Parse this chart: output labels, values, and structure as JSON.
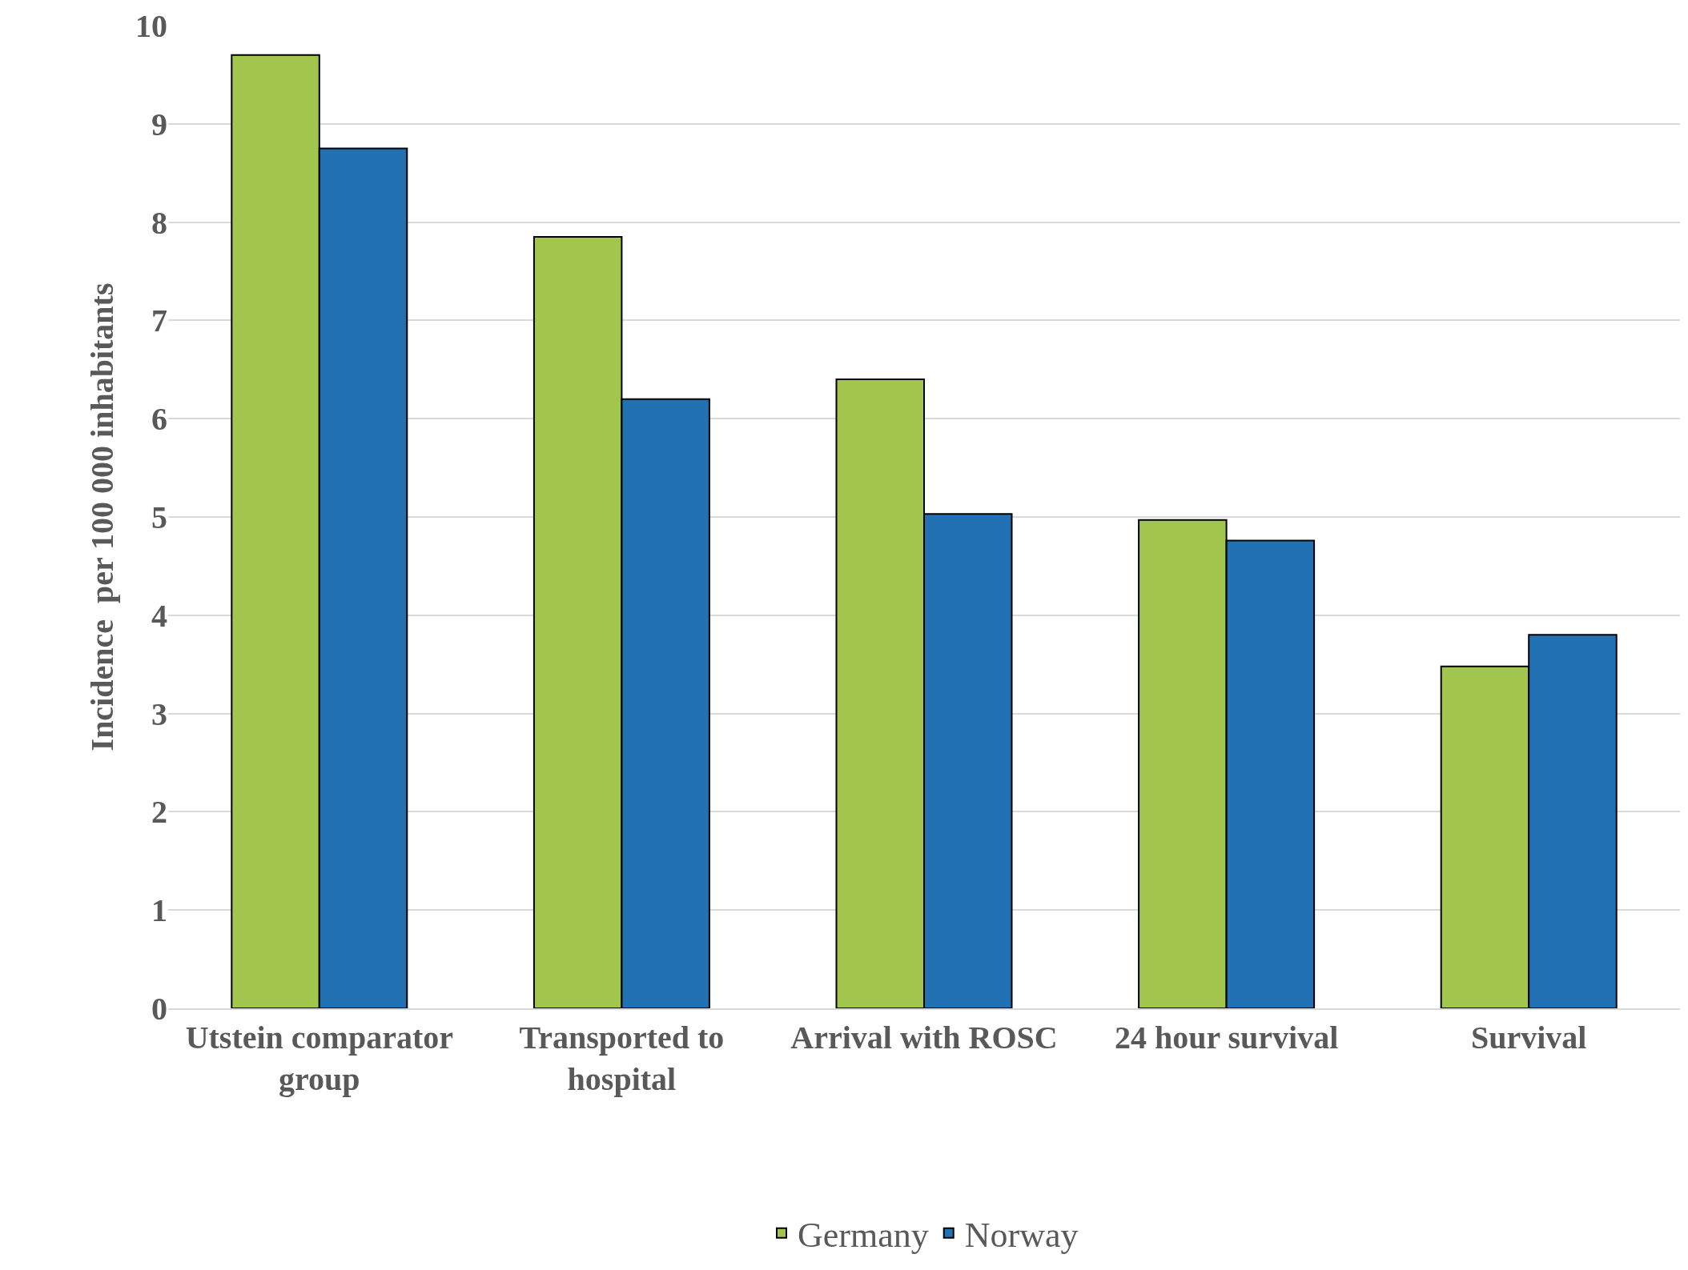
{
  "chart_data": {
    "type": "bar",
    "ylabel": "Incidence  per 100 000 inhabitants",
    "categories": [
      "Utstein comparator group",
      "Transported to hospital",
      "Arrival with ROSC",
      "24 hour survival",
      "Survival"
    ],
    "series": [
      {
        "name": "Germany",
        "color": "#a2c54e",
        "values": [
          9.7,
          7.85,
          6.4,
          4.97,
          3.48
        ]
      },
      {
        "name": "Norway",
        "color": "#2271b3",
        "values": [
          8.75,
          6.2,
          5.03,
          4.76,
          3.8
        ]
      }
    ],
    "ylim": [
      0,
      10
    ],
    "yticks": [
      0,
      1,
      2,
      3,
      4,
      5,
      6,
      7,
      8,
      9,
      10
    ],
    "grid": "y",
    "legend": "bottom"
  }
}
